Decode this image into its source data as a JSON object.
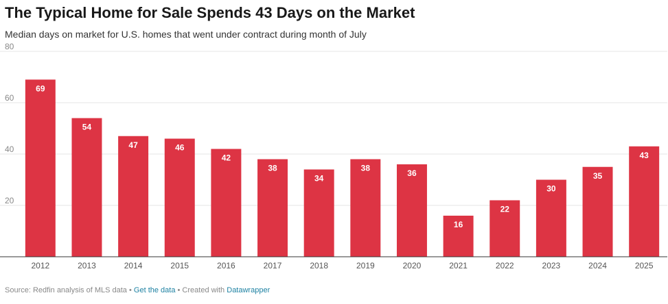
{
  "chart_data": {
    "type": "bar",
    "title": "The Typical Home for Sale Spends 43 Days on the Market",
    "subtitle": "Median days on market for U.S. homes that went under contract during month of July",
    "categories": [
      "2012",
      "2013",
      "2014",
      "2015",
      "2016",
      "2017",
      "2018",
      "2019",
      "2020",
      "2021",
      "2022",
      "2023",
      "2024",
      "2025"
    ],
    "values": [
      69,
      54,
      47,
      46,
      42,
      38,
      34,
      38,
      36,
      16,
      22,
      30,
      35,
      43
    ],
    "ylim": [
      0,
      80
    ],
    "yticks": [
      20,
      40,
      60,
      80
    ],
    "grid": true,
    "bar_color": "#dd3444",
    "value_labels": true
  },
  "footer": {
    "source": "Source: Redfin analysis of MLS data",
    "separator": " • ",
    "get_data": "Get the data",
    "created_with": "Created with",
    "datawrapper": "Datawrapper"
  }
}
